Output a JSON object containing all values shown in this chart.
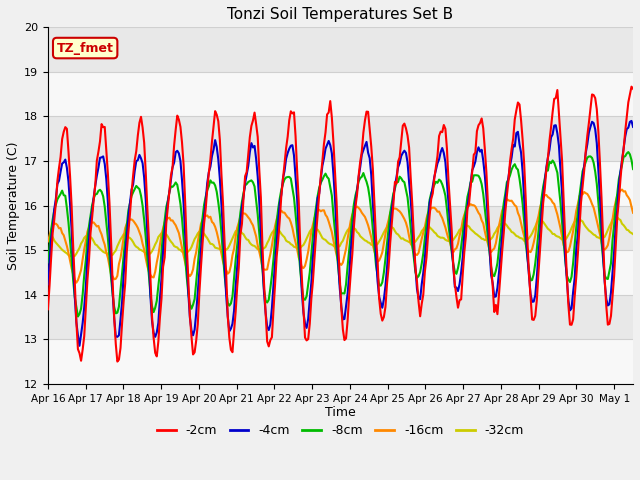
{
  "title": "Tonzi Soil Temperatures Set B",
  "xlabel": "Time",
  "ylabel": "Soil Temperature (C)",
  "ylim": [
    12.0,
    20.0
  ],
  "yticks": [
    12.0,
    13.0,
    14.0,
    15.0,
    16.0,
    17.0,
    18.0,
    19.0,
    20.0
  ],
  "legend_labels": [
    "-2cm",
    "-4cm",
    "-8cm",
    "-16cm",
    "-32cm"
  ],
  "legend_colors": [
    "#ff0000",
    "#0000cc",
    "#00bb00",
    "#ff8800",
    "#cccc00"
  ],
  "annotation_text": "TZ_fmet",
  "annotation_color": "#cc0000",
  "annotation_bg": "#ffffcc",
  "band_colors": [
    "#e8e8e8",
    "#f8f8f8"
  ],
  "line_widths": [
    1.5,
    1.5,
    1.5,
    1.5,
    1.5
  ],
  "figsize": [
    6.4,
    4.8
  ],
  "dpi": 100
}
